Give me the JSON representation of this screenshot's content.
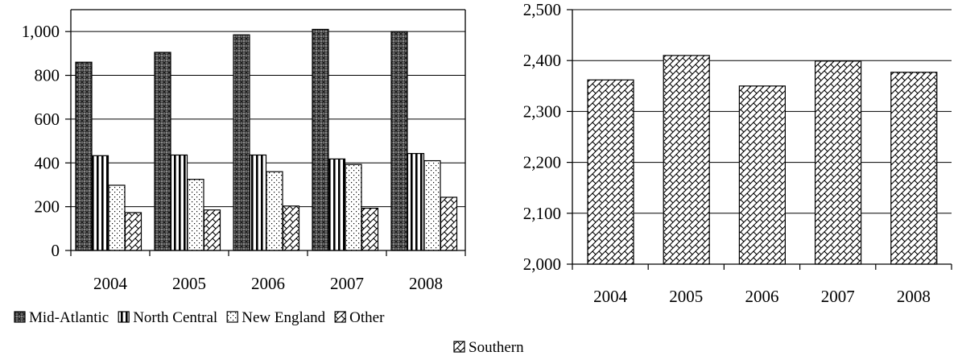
{
  "chart_data": [
    {
      "type": "bar",
      "categories": [
        "2004",
        "2005",
        "2006",
        "2007",
        "2008"
      ],
      "series": [
        {
          "name": "Mid-Atlantic",
          "values": [
            860,
            905,
            985,
            1010,
            1000
          ]
        },
        {
          "name": "North Central",
          "values": [
            433,
            436,
            436,
            418,
            443
          ]
        },
        {
          "name": "New England",
          "values": [
            298,
            325,
            360,
            393,
            410
          ]
        },
        {
          "name": "Other",
          "values": [
            173,
            185,
            203,
            193,
            243
          ]
        }
      ],
      "ylim": [
        0,
        1100
      ],
      "yticks": [
        0,
        200,
        400,
        600,
        800,
        1000
      ],
      "ytick_labels": [
        "0",
        "200",
        "400",
        "600",
        "800",
        "1,000"
      ],
      "grid": true,
      "legend_position": "bottom"
    },
    {
      "type": "bar",
      "categories": [
        "2004",
        "2005",
        "2006",
        "2007",
        "2008"
      ],
      "series": [
        {
          "name": "Southern",
          "values": [
            2362,
            2410,
            2350,
            2399,
            2377
          ]
        }
      ],
      "ylim": [
        2000,
        2500
      ],
      "yticks": [
        2000,
        2100,
        2200,
        2300,
        2400,
        2500
      ],
      "ytick_labels": [
        "2,000",
        "2,100",
        "2,200",
        "2,300",
        "2,400",
        "2,500"
      ],
      "grid": true,
      "legend_position": "bottom"
    }
  ],
  "colors": {
    "bar_outline": "#000000",
    "mid_atlantic_fill": "#5a5a5a",
    "pattern_fill": "#ffffff",
    "gridline": "#000000"
  }
}
